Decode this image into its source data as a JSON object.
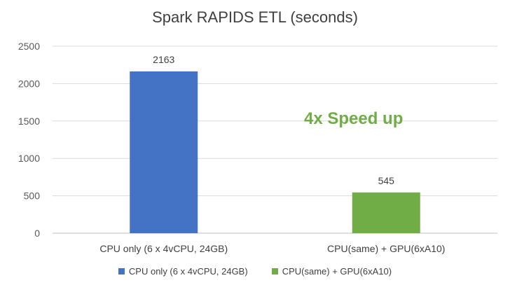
{
  "chart_data": {
    "type": "bar",
    "title": "Spark RAPIDS ETL (seconds)",
    "categories": [
      "CPU only (6 x 4vCPU, 24GB)",
      "CPU(same) + GPU(6xA10)"
    ],
    "values": [
      2163,
      545
    ],
    "data_labels": [
      "2163",
      "545"
    ],
    "colors": [
      "#4472C4",
      "#70AD47"
    ],
    "ylim": [
      0,
      2500
    ],
    "yticks": [
      0,
      500,
      1000,
      1500,
      2000,
      2500
    ],
    "grid": true,
    "legend": {
      "placement": "bottom",
      "entries": [
        {
          "label": "CPU only (6 x 4vCPU, 24GB)",
          "color": "#4472C4"
        },
        {
          "label": "CPU(same) + GPU(6xA10)",
          "color": "#70AD47"
        }
      ]
    },
    "annotation": "4x Speed up"
  }
}
